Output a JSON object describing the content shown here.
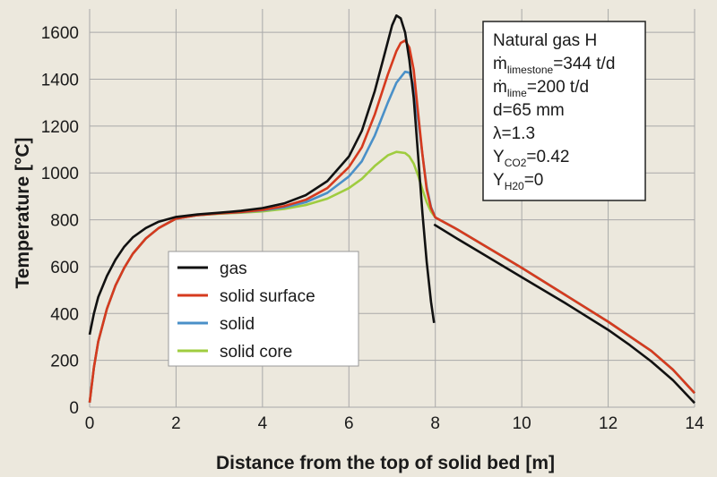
{
  "chart_data": {
    "type": "line",
    "xlabel": "Distance from the top of solid bed [m]",
    "ylabel": "Temperature [°C]",
    "xlim": [
      0,
      14
    ],
    "ylim": [
      0,
      1700
    ],
    "xticks": [
      0,
      2,
      4,
      6,
      8,
      10,
      12,
      14
    ],
    "yticks": [
      0,
      200,
      400,
      600,
      800,
      1000,
      1200,
      1400,
      1600
    ],
    "grid": true,
    "legend_position": "lower-left",
    "annotation": {
      "lines": [
        {
          "main": "Natural gas H"
        },
        {
          "main": "ṁ",
          "sub": "limestone",
          "rest": "=344 t/d"
        },
        {
          "main": "ṁ",
          "sub": "lime",
          "rest": "=200 t/d"
        },
        {
          "main": "d=65 mm"
        },
        {
          "main": "λ=1.3"
        },
        {
          "main": "Y",
          "sub": "CO2",
          "rest": "=0.42"
        },
        {
          "main": "Y",
          "sub": "H20",
          "rest": "=0"
        }
      ]
    },
    "series": [
      {
        "name": "gas",
        "color": "#111111",
        "segments": [
          [
            [
              0,
              310
            ],
            [
              0.1,
              400
            ],
            [
              0.2,
              470
            ],
            [
              0.4,
              560
            ],
            [
              0.6,
              630
            ],
            [
              0.8,
              685
            ],
            [
              1.0,
              725
            ],
            [
              1.3,
              765
            ],
            [
              1.6,
              792
            ],
            [
              2.0,
              812
            ],
            [
              2.5,
              823
            ],
            [
              3.0,
              830
            ],
            [
              3.5,
              838
            ],
            [
              4.0,
              850
            ],
            [
              4.5,
              870
            ],
            [
              5.0,
              905
            ],
            [
              5.5,
              965
            ],
            [
              6.0,
              1070
            ],
            [
              6.3,
              1180
            ],
            [
              6.6,
              1350
            ],
            [
              6.8,
              1490
            ],
            [
              7.0,
              1630
            ],
            [
              7.1,
              1672
            ],
            [
              7.2,
              1660
            ],
            [
              7.3,
              1600
            ],
            [
              7.4,
              1480
            ],
            [
              7.5,
              1320
            ],
            [
              7.6,
              1080
            ],
            [
              7.7,
              830
            ],
            [
              7.8,
              620
            ],
            [
              7.9,
              450
            ],
            [
              7.97,
              360
            ]
          ],
          [
            [
              7.97,
              780
            ],
            [
              8.5,
              720
            ],
            [
              9.0,
              665
            ],
            [
              10.0,
              555
            ],
            [
              11.0,
              445
            ],
            [
              12.0,
              330
            ],
            [
              12.5,
              265
            ],
            [
              13.0,
              195
            ],
            [
              13.5,
              115
            ],
            [
              14.0,
              18
            ]
          ]
        ]
      },
      {
        "name": "solid surface",
        "color": "#d63a1e",
        "segments": [
          [
            [
              0,
              20
            ],
            [
              0.1,
              170
            ],
            [
              0.2,
              280
            ],
            [
              0.4,
              420
            ],
            [
              0.6,
              520
            ],
            [
              0.8,
              595
            ],
            [
              1.0,
              655
            ],
            [
              1.3,
              720
            ],
            [
              1.6,
              765
            ],
            [
              2.0,
              805
            ],
            [
              2.5,
              820
            ],
            [
              3.0,
              827
            ],
            [
              3.5,
              833
            ],
            [
              4.0,
              842
            ],
            [
              4.5,
              858
            ],
            [
              5.0,
              885
            ],
            [
              5.5,
              935
            ],
            [
              6.0,
              1025
            ],
            [
              6.3,
              1110
            ],
            [
              6.6,
              1250
            ],
            [
              6.9,
              1420
            ],
            [
              7.1,
              1520
            ],
            [
              7.2,
              1555
            ],
            [
              7.3,
              1565
            ],
            [
              7.4,
              1535
            ],
            [
              7.5,
              1440
            ],
            [
              7.6,
              1260
            ],
            [
              7.7,
              1080
            ],
            [
              7.8,
              930
            ],
            [
              7.9,
              850
            ],
            [
              8.0,
              810
            ],
            [
              8.5,
              760
            ],
            [
              9.0,
              705
            ],
            [
              10.0,
              595
            ],
            [
              11.0,
              480
            ],
            [
              12.0,
              365
            ],
            [
              13.0,
              240
            ],
            [
              13.5,
              160
            ],
            [
              14.0,
              60
            ]
          ]
        ]
      },
      {
        "name": "solid",
        "color": "#4a90c8",
        "segments": [
          [
            [
              0,
              20
            ],
            [
              0.1,
              170
            ],
            [
              0.2,
              280
            ],
            [
              0.4,
              420
            ],
            [
              0.6,
              520
            ],
            [
              0.8,
              595
            ],
            [
              1.0,
              655
            ],
            [
              1.3,
              720
            ],
            [
              1.6,
              765
            ],
            [
              2.0,
              805
            ],
            [
              2.5,
              820
            ],
            [
              3.0,
              827
            ],
            [
              3.5,
              832
            ],
            [
              4.0,
              840
            ],
            [
              4.5,
              853
            ],
            [
              5.0,
              875
            ],
            [
              5.5,
              915
            ],
            [
              6.0,
              985
            ],
            [
              6.3,
              1050
            ],
            [
              6.6,
              1160
            ],
            [
              6.9,
              1300
            ],
            [
              7.1,
              1385
            ],
            [
              7.3,
              1432
            ],
            [
              7.4,
              1428
            ],
            [
              7.5,
              1370
            ],
            [
              7.6,
              1230
            ],
            [
              7.7,
              1080
            ],
            [
              7.8,
              940
            ],
            [
              7.9,
              855
            ],
            [
              8.0,
              810
            ],
            [
              8.5,
              760
            ],
            [
              9.0,
              705
            ],
            [
              10.0,
              595
            ],
            [
              11.0,
              480
            ],
            [
              12.0,
              365
            ],
            [
              13.0,
              240
            ],
            [
              13.5,
              160
            ],
            [
              14.0,
              60
            ]
          ]
        ]
      },
      {
        "name": "solid core",
        "color": "#9fcc3f",
        "segments": [
          [
            [
              0,
              20
            ],
            [
              0.1,
              170
            ],
            [
              0.2,
              280
            ],
            [
              0.4,
              420
            ],
            [
              0.6,
              520
            ],
            [
              0.8,
              595
            ],
            [
              1.0,
              655
            ],
            [
              1.3,
              720
            ],
            [
              1.6,
              765
            ],
            [
              2.0,
              805
            ],
            [
              2.5,
              820
            ],
            [
              3.0,
              826
            ],
            [
              3.5,
              830
            ],
            [
              4.0,
              836
            ],
            [
              4.5,
              846
            ],
            [
              5.0,
              863
            ],
            [
              5.5,
              890
            ],
            [
              6.0,
              935
            ],
            [
              6.3,
              975
            ],
            [
              6.6,
              1030
            ],
            [
              6.9,
              1075
            ],
            [
              7.1,
              1090
            ],
            [
              7.3,
              1085
            ],
            [
              7.4,
              1070
            ],
            [
              7.5,
              1040
            ],
            [
              7.6,
              990
            ],
            [
              7.7,
              930
            ],
            [
              7.8,
              875
            ],
            [
              7.9,
              835
            ],
            [
              8.0,
              810
            ],
            [
              8.5,
              760
            ],
            [
              9.0,
              705
            ],
            [
              10.0,
              595
            ],
            [
              11.0,
              480
            ],
            [
              12.0,
              365
            ],
            [
              13.0,
              240
            ],
            [
              13.5,
              160
            ],
            [
              14.0,
              60
            ]
          ]
        ]
      }
    ]
  }
}
